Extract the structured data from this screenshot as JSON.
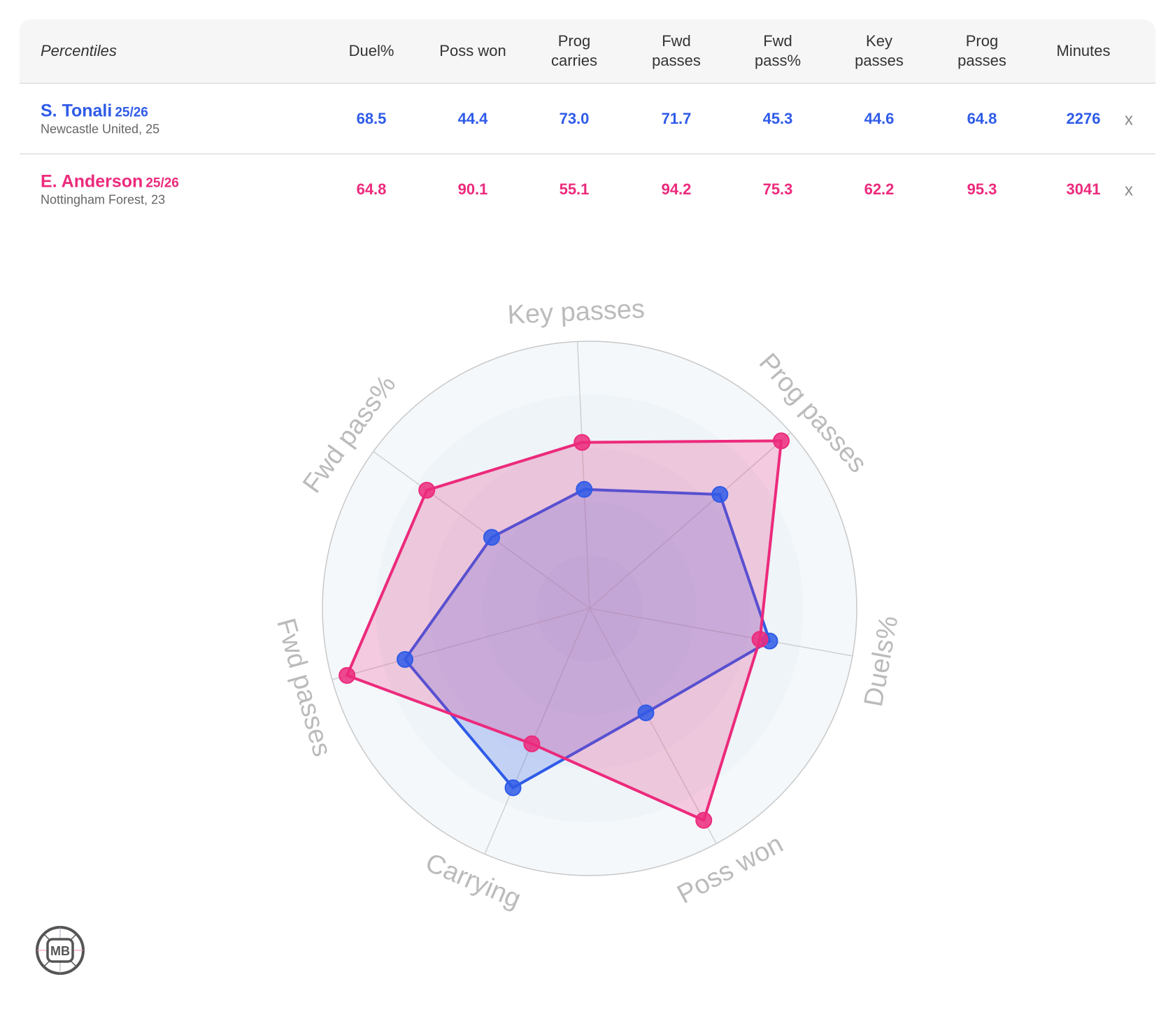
{
  "table": {
    "label": "Percentiles",
    "columns": [
      "Duel%",
      "Poss won",
      "Prog\ncarries",
      "Fwd\npasses",
      "Fwd\npass%",
      "Key\npasses",
      "Prog\npasses",
      "Minutes"
    ],
    "remove_label": "x",
    "players": [
      {
        "name": "S. Tonali",
        "season": "25/26",
        "team": "Newcastle United, 25",
        "color": "#2f5be8",
        "values": [
          "68.5",
          "44.4",
          "73.0",
          "71.7",
          "45.3",
          "44.6",
          "64.8",
          "2276"
        ]
      },
      {
        "name": "E. Anderson",
        "season": "25/26",
        "team": "Nottingham Forest, 23",
        "color": "#ec2a7c",
        "values": [
          "64.8",
          "90.1",
          "55.1",
          "94.2",
          "75.3",
          "62.2",
          "95.3",
          "3041"
        ]
      }
    ]
  },
  "chart_data": {
    "type": "radar",
    "axes": [
      "Key passes",
      "Prog passes",
      "Duels%",
      "Poss won",
      "Carrying",
      "Fwd passes",
      "Fwd pass%"
    ],
    "range": [
      0,
      100
    ],
    "rings": [
      20,
      40,
      60,
      80,
      100
    ],
    "series": [
      {
        "name": "S. Tonali",
        "color": "#2f5be8",
        "values": [
          44.6,
          64.8,
          68.5,
          44.4,
          73.0,
          71.7,
          45.3
        ]
      },
      {
        "name": "E. Anderson",
        "color": "#ec2a7c",
        "values": [
          62.2,
          95.3,
          64.8,
          90.1,
          55.1,
          94.2,
          75.3
        ]
      }
    ]
  },
  "logo": {
    "text": "MB"
  }
}
